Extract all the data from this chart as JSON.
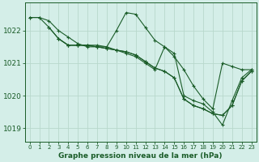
{
  "title": "Graphe pression niveau de la mer (hPa)",
  "background_color": "#d4eee8",
  "plot_bg_color": "#d4eee8",
  "grid_color": "#b8d8cc",
  "line_color": "#1a5c28",
  "marker_color": "#1a5c28",
  "xlim": [
    -0.5,
    23.5
  ],
  "ylim": [
    1018.6,
    1022.85
  ],
  "yticks": [
    1019,
    1020,
    1021,
    1022
  ],
  "xticks": [
    0,
    1,
    2,
    3,
    4,
    5,
    6,
    7,
    8,
    9,
    10,
    11,
    12,
    13,
    14,
    15,
    16,
    17,
    18,
    19,
    20,
    21,
    22,
    23
  ],
  "series": [
    {
      "x": [
        0,
        1,
        2,
        3,
        4,
        5,
        6,
        7,
        8,
        9,
        10,
        11,
        12,
        13,
        14,
        15,
        16,
        17,
        18,
        19,
        20,
        21,
        22,
        23
      ],
      "y": [
        1022.4,
        1022.4,
        1022.3,
        1022.0,
        1021.8,
        1021.6,
        1021.5,
        1021.5,
        1021.5,
        1021.4,
        1021.3,
        1021.2,
        1021.0,
        1020.8,
        1021.5,
        1021.2,
        1020.8,
        1020.3,
        1019.9,
        1019.6,
        1021.0,
        1020.9,
        1020.8,
        1020.8
      ]
    },
    {
      "x": [
        0,
        1,
        2,
        3,
        4,
        5,
        6,
        7,
        8,
        9,
        10,
        11,
        12,
        13,
        14,
        15,
        16,
        17,
        18,
        19,
        20,
        21,
        22,
        23
      ],
      "y": [
        1022.4,
        1022.4,
        1022.1,
        1021.75,
        1021.55,
        1021.55,
        1021.55,
        1021.55,
        1021.5,
        1022.0,
        1022.55,
        1022.5,
        1022.1,
        1021.7,
        1021.5,
        1021.3,
        1020.0,
        1019.85,
        1019.75,
        1019.5,
        1019.1,
        1019.85,
        1020.55,
        1020.8
      ]
    },
    {
      "x": [
        2,
        3,
        4,
        5,
        6,
        7,
        8,
        9,
        10,
        11,
        12,
        13,
        14,
        15,
        16,
        17,
        18,
        19,
        20,
        21,
        22,
        23
      ],
      "y": [
        1022.1,
        1021.75,
        1021.55,
        1021.55,
        1021.55,
        1021.5,
        1021.45,
        1021.4,
        1021.35,
        1021.25,
        1021.05,
        1020.85,
        1020.75,
        1020.55,
        1019.9,
        1019.7,
        1019.6,
        1019.45,
        1019.4,
        1019.7,
        1020.45,
        1020.75
      ]
    },
    {
      "x": [
        3,
        4,
        5,
        6,
        7,
        8,
        9,
        10,
        11,
        12,
        13,
        14,
        15,
        16,
        17,
        18,
        19,
        20,
        21,
        22,
        23
      ],
      "y": [
        1021.75,
        1021.55,
        1021.55,
        1021.55,
        1021.5,
        1021.45,
        1021.4,
        1021.35,
        1021.25,
        1021.05,
        1020.85,
        1020.75,
        1020.55,
        1019.9,
        1019.7,
        1019.6,
        1019.45,
        1019.4,
        1019.7,
        1020.45,
        1020.75
      ]
    }
  ]
}
